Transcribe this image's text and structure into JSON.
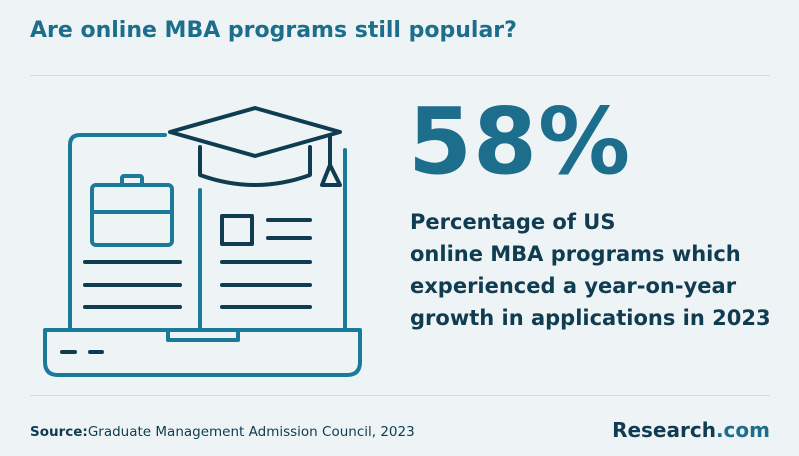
{
  "header": {
    "title": "Are online MBA programs still popular?"
  },
  "stat": {
    "value": "58%",
    "description_lines": [
      "Percentage of US",
      "online MBA programs which",
      "experienced a year-on-year",
      "growth in applications in 2023"
    ]
  },
  "footer": {
    "source_label": "Source:",
    "source_text": "Graduate Management Admission Council, 2023",
    "brand": "Research",
    "brand_suffix": ".com"
  }
}
